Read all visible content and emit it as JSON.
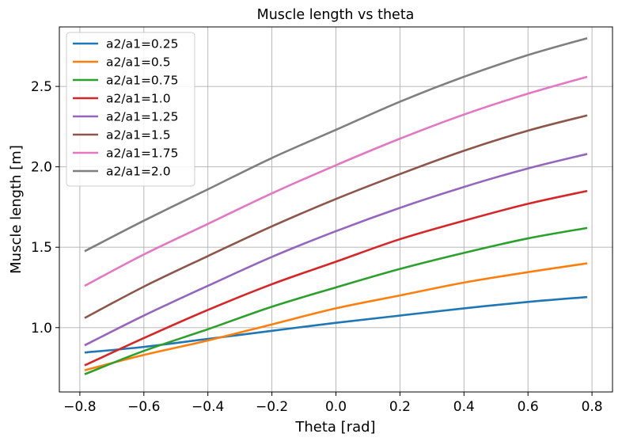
{
  "chart_data": {
    "type": "line",
    "title": "Muscle length vs theta",
    "xlabel": "Theta [rad]",
    "ylabel": "Muscle length [m]",
    "xlim": [
      -0.864,
      0.864
    ],
    "ylim": [
      0.6,
      2.87
    ],
    "xticks": [
      -0.8,
      -0.6,
      -0.4,
      -0.2,
      0.0,
      0.2,
      0.4,
      0.6,
      0.8
    ],
    "xtick_labels": [
      "−0.8",
      "−0.6",
      "−0.4",
      "−0.2",
      "0.0",
      "0.2",
      "0.4",
      "0.6",
      "0.8"
    ],
    "yticks": [
      1.0,
      1.5,
      2.0,
      2.5
    ],
    "ytick_labels": [
      "1.0",
      "1.5",
      "2.0",
      "2.5"
    ],
    "grid": true,
    "legend_position": "top-left",
    "x": [
      -0.785,
      -0.6,
      -0.4,
      -0.2,
      0.0,
      0.2,
      0.4,
      0.6,
      0.785
    ],
    "series": [
      {
        "name": "a2/a1=0.25",
        "color": "#1f77b4",
        "values": [
          0.845,
          0.88,
          0.93,
          0.98,
          1.03,
          1.075,
          1.12,
          1.16,
          1.19
        ]
      },
      {
        "name": "a2/a1=0.5",
        "color": "#ff7f0e",
        "values": [
          0.735,
          0.83,
          0.92,
          1.02,
          1.12,
          1.2,
          1.28,
          1.345,
          1.4
        ]
      },
      {
        "name": "a2/a1=0.75",
        "color": "#2ca02c",
        "values": [
          0.71,
          0.855,
          0.99,
          1.13,
          1.25,
          1.365,
          1.465,
          1.555,
          1.62
        ]
      },
      {
        "name": "a2/a1=1.0",
        "color": "#d62728",
        "values": [
          0.765,
          0.935,
          1.11,
          1.27,
          1.41,
          1.55,
          1.665,
          1.77,
          1.85
        ]
      },
      {
        "name": "a2/a1=1.25",
        "color": "#9467bd",
        "values": [
          0.89,
          1.075,
          1.26,
          1.44,
          1.6,
          1.745,
          1.875,
          1.99,
          2.08
        ]
      },
      {
        "name": "a2/a1=1.5",
        "color": "#8c564b",
        "values": [
          1.06,
          1.255,
          1.445,
          1.63,
          1.8,
          1.955,
          2.1,
          2.225,
          2.32
        ]
      },
      {
        "name": "a2/a1=1.75",
        "color": "#e377c2",
        "values": [
          1.26,
          1.455,
          1.645,
          1.835,
          2.01,
          2.175,
          2.325,
          2.455,
          2.56
        ]
      },
      {
        "name": "a2/a1=2.0",
        "color": "#7f7f7f",
        "values": [
          1.475,
          1.665,
          1.86,
          2.055,
          2.23,
          2.405,
          2.56,
          2.695,
          2.8
        ]
      }
    ]
  }
}
